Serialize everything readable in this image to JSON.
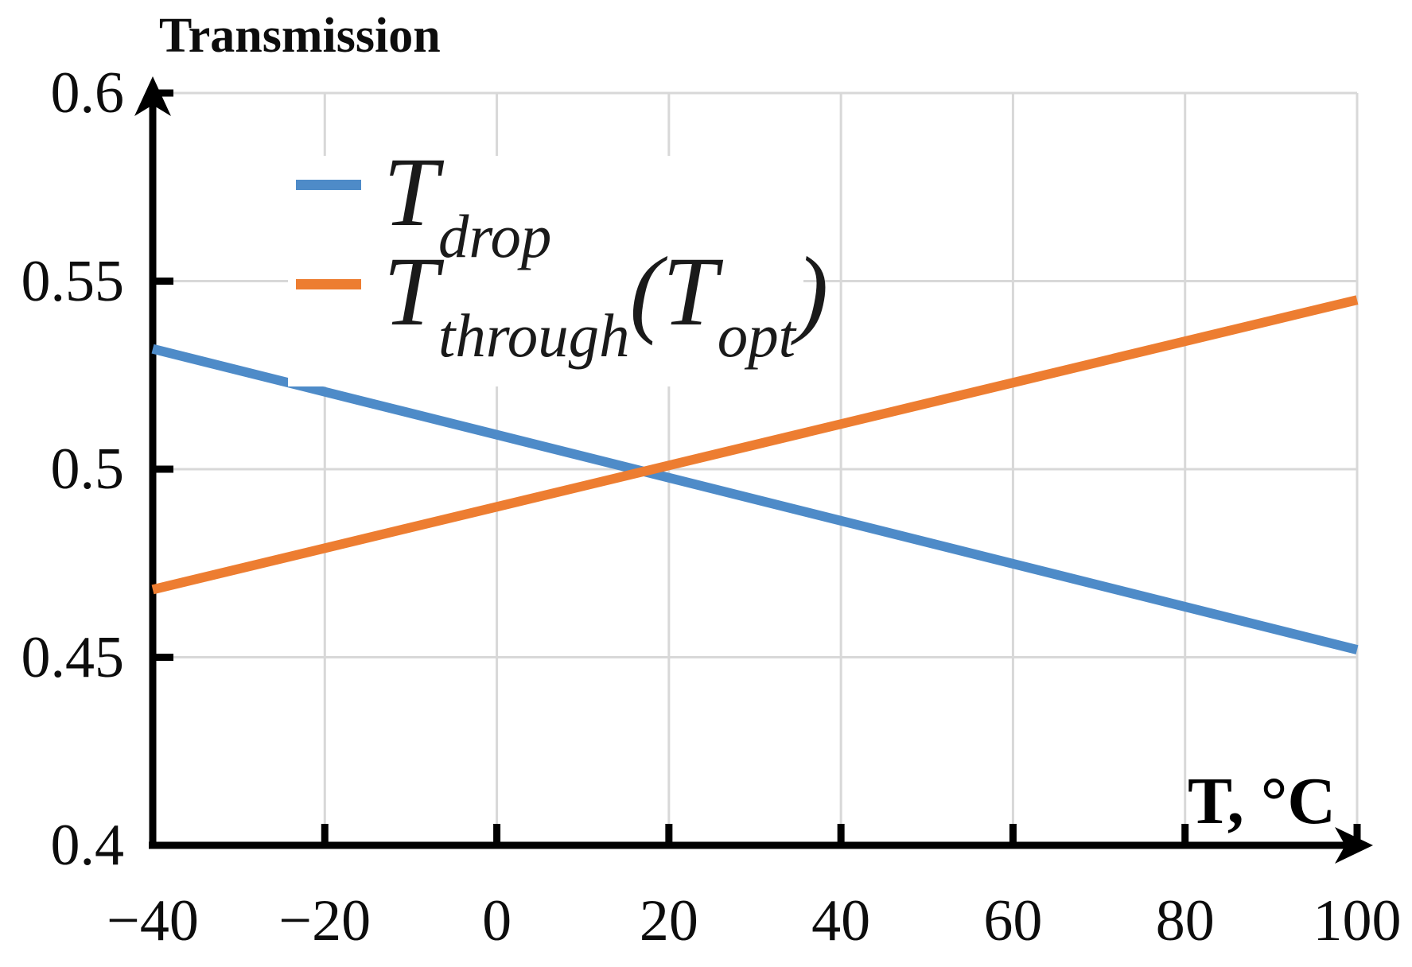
{
  "chart_data": {
    "type": "line",
    "title": "Transmission",
    "xlabel": "T, °C",
    "ylabel": "Transmission",
    "xlim": [
      -40,
      100
    ],
    "ylim": [
      0.4,
      0.6
    ],
    "x_ticks": [
      -40,
      -20,
      0,
      20,
      40,
      60,
      80,
      100
    ],
    "x_tick_labels": [
      "−40",
      "−20",
      "0",
      "20",
      "40",
      "60",
      "80",
      "100"
    ],
    "y_ticks": [
      0.4,
      0.45,
      0.5,
      0.55,
      0.6
    ],
    "y_tick_labels": [
      "0.4",
      "0.45",
      "0.5",
      "0.55",
      "0.6"
    ],
    "grid": true,
    "legend_position": "upper-left",
    "series": [
      {
        "name": "T_drop",
        "color": "#4E8BC8",
        "x": [
          -40,
          100
        ],
        "y": [
          0.532,
          0.452
        ],
        "label_segments": [
          {
            "text": "T",
            "sub": false
          },
          {
            "text": "drop",
            "sub": true
          }
        ]
      },
      {
        "name": "T_through(T_opt)",
        "color": "#ED7D31",
        "x": [
          -40,
          100
        ],
        "y": [
          0.468,
          0.545
        ],
        "label_segments": [
          {
            "text": "T",
            "sub": false
          },
          {
            "text": "through",
            "sub": true
          },
          {
            "text": "(T",
            "sub": false
          },
          {
            "text": "opt",
            "sub": true
          },
          {
            "text": ")",
            "sub": false
          }
        ]
      }
    ],
    "crossing_point": {
      "x": 17.5,
      "y": 0.499
    }
  },
  "colors": {
    "axis": "#000000",
    "grid": "#D8D8D8",
    "background": "#FFFFFF",
    "text": "#0D0D0D",
    "series_blue": "#4E8BC8",
    "series_orange": "#ED7D31"
  }
}
